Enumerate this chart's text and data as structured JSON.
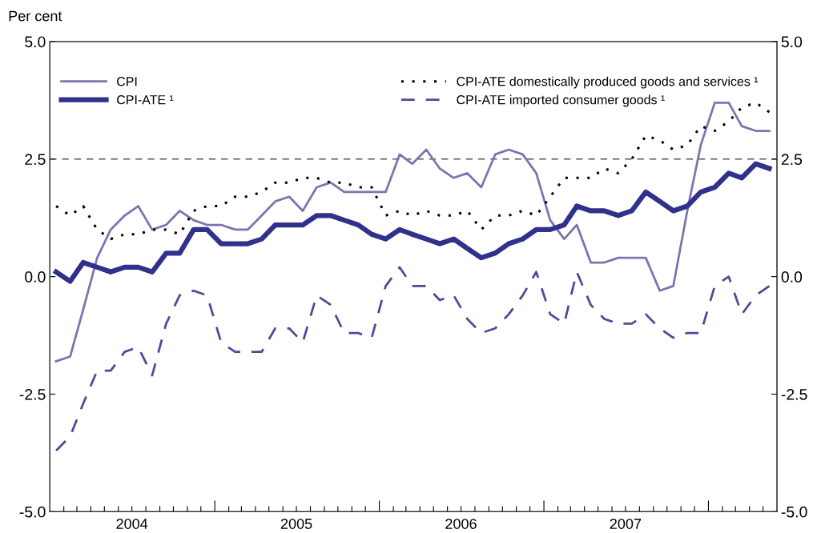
{
  "chart_data": {
    "type": "line",
    "ylabel": "Per cent",
    "x": [
      "2004-01-15",
      "2004-02-15",
      "2004-03-15",
      "2004-04-15",
      "2004-05-15",
      "2004-06-15",
      "2004-07-15",
      "2004-08-15",
      "2004-09-15",
      "2004-10-15",
      "2004-11-15",
      "2004-12-15",
      "2005-01-15",
      "2005-02-15",
      "2005-03-15",
      "2005-04-15",
      "2005-05-15",
      "2005-06-15",
      "2005-07-15",
      "2005-08-15",
      "2005-09-15",
      "2005-10-15",
      "2005-11-15",
      "2005-12-15",
      "2006-01-15",
      "2006-02-15",
      "2006-03-15",
      "2006-04-15",
      "2006-05-15",
      "2006-06-15",
      "2006-07-15",
      "2006-08-15",
      "2006-09-15",
      "2006-10-15",
      "2006-11-15",
      "2006-12-15",
      "2007-01-15",
      "2007-02-15",
      "2007-03-15",
      "2007-04-15",
      "2007-05-15",
      "2007-06-15",
      "2007-07-15",
      "2007-08-15",
      "2007-09-15",
      "2007-10-15",
      "2007-11-15",
      "2007-12-15",
      "2008-01-15",
      "2008-02-15",
      "2008-03-15",
      "2008-04-15",
      "2008-05-15"
    ],
    "series": [
      {
        "name": "CPI",
        "color": "#7b73b8",
        "line_style": "solid",
        "values": [
          -1.8,
          -1.7,
          -0.7,
          0.4,
          1.0,
          1.3,
          1.5,
          1.0,
          1.1,
          1.4,
          1.2,
          1.1,
          1.1,
          1.0,
          1.0,
          1.3,
          1.6,
          1.7,
          1.4,
          1.9,
          2.0,
          1.8,
          1.8,
          1.8,
          1.8,
          2.6,
          2.4,
          2.7,
          2.3,
          2.1,
          2.2,
          1.9,
          2.6,
          2.7,
          2.6,
          2.2,
          1.2,
          0.8,
          1.1,
          0.3,
          0.3,
          0.4,
          0.4,
          0.4,
          -0.3,
          -0.2,
          1.4,
          2.8,
          3.7,
          3.7,
          3.2,
          3.1,
          3.1
        ]
      },
      {
        "name": "CPI-ATE ¹",
        "color": "#2e3192",
        "line_style": "solid",
        "values": [
          0.1,
          -0.1,
          0.3,
          0.2,
          0.1,
          0.2,
          0.2,
          0.1,
          0.5,
          0.5,
          1.0,
          1.0,
          0.7,
          0.7,
          0.7,
          0.8,
          1.1,
          1.1,
          1.1,
          1.3,
          1.3,
          1.2,
          1.1,
          0.9,
          0.8,
          1.0,
          0.9,
          0.8,
          0.7,
          0.8,
          0.6,
          0.4,
          0.5,
          0.7,
          0.8,
          1.0,
          1.0,
          1.1,
          1.5,
          1.4,
          1.4,
          1.3,
          1.4,
          1.8,
          1.6,
          1.4,
          1.5,
          1.8,
          1.9,
          2.2,
          2.1,
          2.4,
          2.3
        ]
      },
      {
        "name": "CPI-ATE domestically produced goods and services ¹",
        "color": "#000000",
        "line_style": "dotted",
        "values": [
          1.5,
          1.3,
          1.5,
          1.0,
          0.8,
          0.9,
          0.9,
          1.0,
          1.0,
          0.9,
          1.4,
          1.5,
          1.5,
          1.7,
          1.7,
          1.8,
          2.0,
          2.0,
          2.1,
          2.1,
          2.0,
          2.0,
          1.9,
          1.9,
          1.3,
          1.4,
          1.3,
          1.4,
          1.3,
          1.3,
          1.4,
          1.0,
          1.3,
          1.3,
          1.4,
          1.3,
          1.7,
          2.1,
          2.1,
          2.1,
          2.3,
          2.2,
          2.5,
          3.0,
          2.9,
          2.7,
          2.8,
          3.2,
          3.1,
          3.3,
          3.6,
          3.7,
          3.5
        ]
      },
      {
        "name": "CPI-ATE imported consumer goods ¹",
        "color": "#4a4aa8",
        "line_style": "dashed",
        "values": [
          -3.7,
          -3.4,
          -2.7,
          -2.0,
          -2.0,
          -1.6,
          -1.5,
          -2.1,
          -1.0,
          -0.4,
          -0.3,
          -0.4,
          -1.4,
          -1.6,
          -1.6,
          -1.6,
          -1.1,
          -1.1,
          -1.4,
          -0.4,
          -0.6,
          -1.2,
          -1.2,
          -1.3,
          -0.2,
          0.2,
          -0.2,
          -0.2,
          -0.5,
          -0.4,
          -0.9,
          -1.2,
          -1.1,
          -0.8,
          -0.4,
          0.1,
          -0.8,
          -1.0,
          0.1,
          -0.6,
          -0.9,
          -1.0,
          -1.0,
          -0.8,
          -1.1,
          -1.3,
          -1.2,
          -1.2,
          -0.2,
          0.0,
          -0.8,
          -0.4,
          -0.2
        ]
      }
    ],
    "xlim": [
      "2004-01-01",
      "2008-06-01"
    ],
    "xticks": [
      {
        "value": "2004-02-01",
        "label": null
      },
      {
        "value": "2004-03-01",
        "label": null
      },
      {
        "value": "2004-04-01",
        "label": null
      },
      {
        "value": "2004-05-01",
        "label": null
      },
      {
        "value": "2004-06-01",
        "label": null
      },
      {
        "value": "2004-07-01",
        "label": "2004"
      },
      {
        "value": "2004-08-01",
        "label": null
      },
      {
        "value": "2004-09-01",
        "label": null
      },
      {
        "value": "2004-10-01",
        "label": null
      },
      {
        "value": "2004-11-01",
        "label": null
      },
      {
        "value": "2004-12-01",
        "label": null
      },
      {
        "value": "2005-01-01",
        "label": null
      },
      {
        "value": "2005-02-01",
        "label": null
      },
      {
        "value": "2005-03-01",
        "label": null
      },
      {
        "value": "2005-04-01",
        "label": null
      },
      {
        "value": "2005-05-01",
        "label": null
      },
      {
        "value": "2005-06-01",
        "label": null
      },
      {
        "value": "2005-07-01",
        "label": "2005"
      },
      {
        "value": "2005-08-01",
        "label": null
      },
      {
        "value": "2005-09-01",
        "label": null
      },
      {
        "value": "2005-10-01",
        "label": null
      },
      {
        "value": "2005-11-01",
        "label": null
      },
      {
        "value": "2005-12-01",
        "label": null
      },
      {
        "value": "2006-01-01",
        "label": null
      },
      {
        "value": "2006-02-01",
        "label": null
      },
      {
        "value": "2006-03-01",
        "label": null
      },
      {
        "value": "2006-04-01",
        "label": null
      },
      {
        "value": "2006-05-01",
        "label": null
      },
      {
        "value": "2006-06-01",
        "label": null
      },
      {
        "value": "2006-07-01",
        "label": "2006"
      },
      {
        "value": "2006-08-01",
        "label": null
      },
      {
        "value": "2006-09-01",
        "label": null
      },
      {
        "value": "2006-10-01",
        "label": null
      },
      {
        "value": "2006-11-01",
        "label": null
      },
      {
        "value": "2006-12-01",
        "label": null
      },
      {
        "value": "2007-01-01",
        "label": null
      },
      {
        "value": "2007-02-01",
        "label": null
      },
      {
        "value": "2007-03-01",
        "label": null
      },
      {
        "value": "2007-04-01",
        "label": null
      },
      {
        "value": "2007-05-01",
        "label": null
      },
      {
        "value": "2007-06-01",
        "label": null
      },
      {
        "value": "2007-07-01",
        "label": "2007"
      },
      {
        "value": "2007-08-01",
        "label": null
      },
      {
        "value": "2007-09-01",
        "label": null
      },
      {
        "value": "2007-10-01",
        "label": null
      },
      {
        "value": "2007-11-01",
        "label": null
      },
      {
        "value": "2007-12-01",
        "label": null
      },
      {
        "value": "2008-01-01",
        "label": null
      },
      {
        "value": "2008-02-01",
        "label": null
      },
      {
        "value": "2008-03-01",
        "label": null
      },
      {
        "value": "2008-04-01",
        "label": null
      },
      {
        "value": "2008-05-01",
        "label": null
      }
    ],
    "ylim": [
      -5,
      5
    ],
    "yticks": [
      {
        "value": -5,
        "label": "-5.0"
      },
      {
        "value": -2.5,
        "label": "-2.5"
      },
      {
        "value": 0,
        "label": "0.0"
      },
      {
        "value": 2.5,
        "label": "2.5"
      },
      {
        "value": 5,
        "label": "5.0"
      }
    ],
    "y2lim": [
      -5,
      5
    ],
    "y2ticks": [
      {
        "value": -5,
        "label": "-5.0"
      },
      {
        "value": -2.5,
        "label": "-2.5"
      },
      {
        "value": 0,
        "label": "0.0"
      },
      {
        "value": 2.5,
        "label": "2.5"
      },
      {
        "value": 5,
        "label": "5.0"
      }
    ],
    "ref_lines": [
      {
        "axis": "y",
        "value": 2.5,
        "color": "#555555",
        "line_style": "dashed"
      }
    ],
    "legend": "top",
    "grid": false
  }
}
